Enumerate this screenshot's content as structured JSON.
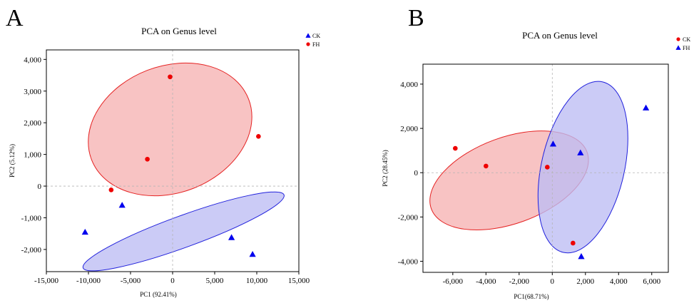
{
  "panels": [
    {
      "letter": "A"
    },
    {
      "letter": "B"
    }
  ],
  "chart_data": [
    {
      "type": "scatter",
      "title": "PCA on Genus level",
      "xlabel": "PC1 (92.41%)",
      "ylabel": "PC2 (5.12%)",
      "xlim": [
        -15000,
        15000
      ],
      "ylim": [
        -2700,
        4300
      ],
      "xticks": [
        -15000,
        -10000,
        -5000,
        0,
        5000,
        10000,
        15000
      ],
      "yticks": [
        -2000,
        -1000,
        0,
        1000,
        2000,
        3000,
        4000
      ],
      "xtick_labels": [
        "-15,000",
        "-10,000",
        "-5,000",
        "0",
        "5,000",
        "10,000",
        "15,000"
      ],
      "ytick_labels": [
        "-2,000",
        "-1,000",
        "0",
        "1,000",
        "2,000",
        "3,000",
        "4,000"
      ],
      "legend_position": "top-right",
      "series": [
        {
          "name": "CK",
          "marker": "triangle",
          "color": "#0000ee",
          "x": [
            -10400,
            -6000,
            7000,
            9500
          ],
          "y": [
            -1450,
            -600,
            -1620,
            -2150
          ]
        },
        {
          "name": "FH",
          "marker": "circle",
          "color": "#ee0000",
          "x": [
            -7300,
            -3000,
            -300,
            10200
          ],
          "y": [
            -120,
            850,
            3450,
            1570
          ]
        }
      ]
    },
    {
      "type": "scatter",
      "title": "PCA on Genus level",
      "xlabel": "PC1(68.71%)",
      "ylabel": "PC2 (28.45%)",
      "xlim": [
        -7800,
        7000
      ],
      "ylim": [
        -4500,
        4900
      ],
      "xticks": [
        -6000,
        -4000,
        -2000,
        0,
        2000,
        4000,
        6000
      ],
      "yticks": [
        -4000,
        -2000,
        0,
        2000,
        4000
      ],
      "xtick_labels": [
        "-6,000",
        "-4,000",
        "-2,000",
        "0",
        "2,000",
        "4,000",
        "6,000"
      ],
      "ytick_labels": [
        "-4,000",
        "-2,000",
        "0",
        "2,000",
        "4,000"
      ],
      "legend_position": "top-right",
      "series": [
        {
          "name": "CK",
          "marker": "circle",
          "color": "#ee0000",
          "x": [
            -5850,
            -4000,
            -300,
            1250
          ],
          "y": [
            1100,
            300,
            250,
            -3180
          ]
        },
        {
          "name": "FH",
          "marker": "triangle",
          "color": "#0000ee",
          "x": [
            50,
            1700,
            1750,
            5650
          ],
          "y": [
            1300,
            900,
            -3780,
            2930
          ]
        }
      ]
    }
  ]
}
